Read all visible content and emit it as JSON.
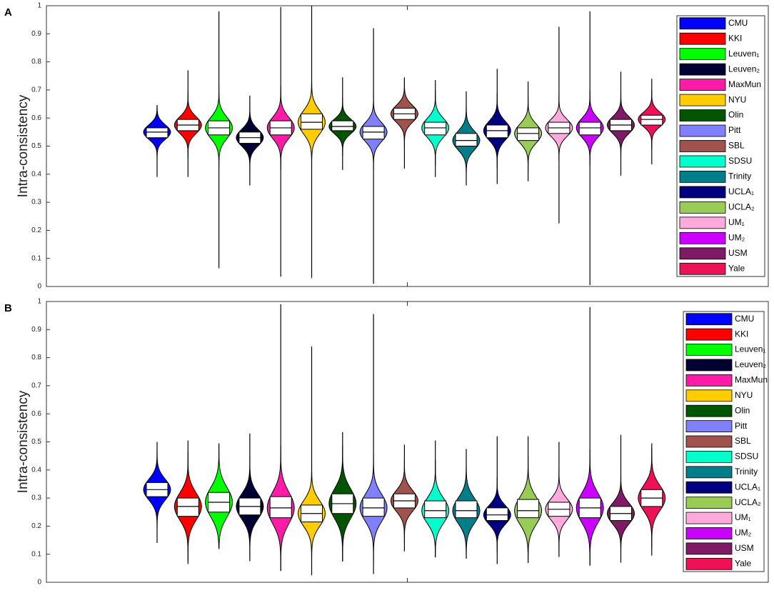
{
  "chart_data": [
    {
      "type": "violin",
      "label": "A",
      "y_label": "Intra-consistency",
      "ylim": [
        0,
        1
      ],
      "yticks": [
        0,
        0.1,
        0.2,
        0.3,
        0.4,
        0.5,
        0.6,
        0.7,
        0.8,
        0.9,
        1
      ],
      "series": [
        {
          "name": "CMU",
          "color": "#0000ff",
          "min": 0.39,
          "q1": 0.53,
          "median": 0.55,
          "q3": 0.565,
          "max": 0.645
        },
        {
          "name": "KKI",
          "color": "#ff0000",
          "min": 0.39,
          "q1": 0.555,
          "median": 0.575,
          "q3": 0.595,
          "max": 0.77
        },
        {
          "name": "Leuven₁",
          "color": "#00ff00",
          "min": 0.065,
          "q1": 0.54,
          "median": 0.565,
          "q3": 0.59,
          "max": 0.98
        },
        {
          "name": "Leuven₂",
          "color": "#000033",
          "min": 0.36,
          "q1": 0.51,
          "median": 0.53,
          "q3": 0.55,
          "max": 0.68
        },
        {
          "name": "MaxMun",
          "color": "#ff1aa8",
          "min": 0.035,
          "q1": 0.54,
          "median": 0.565,
          "q3": 0.59,
          "max": 0.995
        },
        {
          "name": "NYU",
          "color": "#ffcc00",
          "min": 0.03,
          "q1": 0.56,
          "median": 0.585,
          "q3": 0.615,
          "max": 1.0
        },
        {
          "name": "Olin",
          "color": "#005500",
          "min": 0.415,
          "q1": 0.555,
          "median": 0.57,
          "q3": 0.59,
          "max": 0.745
        },
        {
          "name": "Pitt",
          "color": "#8080ff",
          "min": 0.01,
          "q1": 0.525,
          "median": 0.55,
          "q3": 0.57,
          "max": 0.92
        },
        {
          "name": "SBL",
          "color": "#a0524d",
          "min": 0.42,
          "q1": 0.595,
          "median": 0.615,
          "q3": 0.635,
          "max": 0.745
        },
        {
          "name": "SDSU",
          "color": "#00ffcc",
          "min": 0.39,
          "q1": 0.54,
          "median": 0.565,
          "q3": 0.585,
          "max": 0.735
        },
        {
          "name": "Trinity",
          "color": "#007f8a",
          "min": 0.36,
          "q1": 0.5,
          "median": 0.52,
          "q3": 0.545,
          "max": 0.695
        },
        {
          "name": "UCLA₁",
          "color": "#000080",
          "min": 0.365,
          "q1": 0.53,
          "median": 0.555,
          "q3": 0.575,
          "max": 0.775
        },
        {
          "name": "UCLA₂",
          "color": "#99cc55",
          "min": 0.375,
          "q1": 0.52,
          "median": 0.545,
          "q3": 0.565,
          "max": 0.73
        },
        {
          "name": "UM₁",
          "color": "#ffaadd",
          "min": 0.225,
          "q1": 0.545,
          "median": 0.565,
          "q3": 0.585,
          "max": 0.925
        },
        {
          "name": "UM₂",
          "color": "#cc00ff",
          "min": 0.005,
          "q1": 0.54,
          "median": 0.565,
          "q3": 0.585,
          "max": 0.98
        },
        {
          "name": "USM",
          "color": "#7f1a66",
          "min": 0.395,
          "q1": 0.555,
          "median": 0.575,
          "q3": 0.595,
          "max": 0.765
        },
        {
          "name": "Yale",
          "color": "#ee1155",
          "min": 0.435,
          "q1": 0.575,
          "median": 0.595,
          "q3": 0.61,
          "max": 0.74
        }
      ]
    },
    {
      "type": "violin",
      "label": "B",
      "y_label": "Intra-consistency",
      "ylim": [
        0,
        1
      ],
      "yticks": [
        0,
        0.1,
        0.2,
        0.3,
        0.4,
        0.5,
        0.6,
        0.7,
        0.8,
        0.9,
        1
      ],
      "series": [
        {
          "name": "CMU",
          "color": "#0000ff",
          "min": 0.14,
          "q1": 0.305,
          "median": 0.33,
          "q3": 0.355,
          "max": 0.5
        },
        {
          "name": "KKI",
          "color": "#ff0000",
          "min": 0.065,
          "q1": 0.235,
          "median": 0.27,
          "q3": 0.3,
          "max": 0.505
        },
        {
          "name": "Leuven₁",
          "color": "#00ff00",
          "min": 0.12,
          "q1": 0.25,
          "median": 0.285,
          "q3": 0.32,
          "max": 0.495
        },
        {
          "name": "Leuven₂",
          "color": "#000033",
          "min": 0.075,
          "q1": 0.24,
          "median": 0.27,
          "q3": 0.3,
          "max": 0.53
        },
        {
          "name": "MaxMun",
          "color": "#ff1aa8",
          "min": 0.04,
          "q1": 0.23,
          "median": 0.265,
          "q3": 0.305,
          "max": 0.99
        },
        {
          "name": "NYU",
          "color": "#ffcc00",
          "min": 0.025,
          "q1": 0.215,
          "median": 0.245,
          "q3": 0.275,
          "max": 0.84
        },
        {
          "name": "Olin",
          "color": "#005500",
          "min": 0.075,
          "q1": 0.245,
          "median": 0.28,
          "q3": 0.315,
          "max": 0.535
        },
        {
          "name": "Pitt",
          "color": "#8080ff",
          "min": 0.03,
          "q1": 0.235,
          "median": 0.265,
          "q3": 0.3,
          "max": 0.955
        },
        {
          "name": "SBL",
          "color": "#a0524d",
          "min": 0.11,
          "q1": 0.265,
          "median": 0.29,
          "q3": 0.315,
          "max": 0.49
        },
        {
          "name": "SDSU",
          "color": "#00ffcc",
          "min": 0.09,
          "q1": 0.23,
          "median": 0.255,
          "q3": 0.29,
          "max": 0.505
        },
        {
          "name": "Trinity",
          "color": "#007f8a",
          "min": 0.085,
          "q1": 0.23,
          "median": 0.255,
          "q3": 0.29,
          "max": 0.475
        },
        {
          "name": "UCLA₁",
          "color": "#000080",
          "min": 0.065,
          "q1": 0.22,
          "median": 0.24,
          "q3": 0.265,
          "max": 0.52
        },
        {
          "name": "UCLA₂",
          "color": "#99cc55",
          "min": 0.07,
          "q1": 0.23,
          "median": 0.255,
          "q3": 0.295,
          "max": 0.52
        },
        {
          "name": "UM₁",
          "color": "#ffaadd",
          "min": 0.09,
          "q1": 0.235,
          "median": 0.26,
          "q3": 0.285,
          "max": 0.5
        },
        {
          "name": "UM₂",
          "color": "#cc00ff",
          "min": 0.06,
          "q1": 0.23,
          "median": 0.265,
          "q3": 0.3,
          "max": 0.98
        },
        {
          "name": "USM",
          "color": "#7f1a66",
          "min": 0.07,
          "q1": 0.22,
          "median": 0.245,
          "q3": 0.27,
          "max": 0.525
        },
        {
          "name": "Yale",
          "color": "#ee1155",
          "min": 0.095,
          "q1": 0.27,
          "median": 0.3,
          "q3": 0.33,
          "max": 0.495
        }
      ]
    }
  ]
}
